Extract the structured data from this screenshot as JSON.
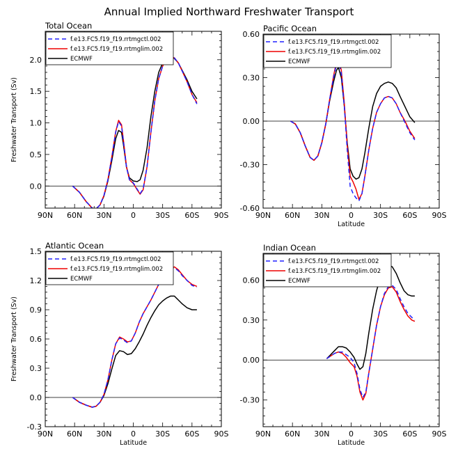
{
  "page_title": "Annual Implied Northward Freshwater Transport",
  "series_styles": [
    {
      "name": "f.e13.FC5.f19_f19.rrtmgctl.002",
      "color": "#2020ff",
      "dash": "6,4"
    },
    {
      "name": "f.e13.FC5.f19_f19.rrtmglim.002",
      "color": "#ee0000",
      "dash": ""
    },
    {
      "name": "ECMWF",
      "color": "#000000",
      "dash": ""
    }
  ],
  "chart_data": [
    {
      "type": "line",
      "title": "Total Ocean",
      "xlabel": "",
      "ylabel": "Freshwater Transport (Sv)",
      "xlim": [
        -90,
        90
      ],
      "ylim": [
        -0.35,
        2.45
      ],
      "x_reversed": true,
      "xticks": [
        -90,
        -60,
        -30,
        0,
        30,
        60,
        90
      ],
      "xtick_labels": [
        "90N",
        "60N",
        "30N",
        "0",
        "30S",
        "60S",
        "90S"
      ],
      "yticks": [
        0.0,
        0.5,
        1.0,
        1.5,
        2.0
      ],
      "ytick_labels": [
        "0.0",
        "0.5",
        "1.0",
        "1.5",
        "2.0"
      ],
      "zero_line": true,
      "legend": "top-left",
      "series": [
        {
          "name": "f.e13.FC5.f19_f19.rrtmgctl.002",
          "x": [
            -62,
            -55,
            -48,
            -42,
            -38,
            -34,
            -30,
            -26,
            -22,
            -18,
            -15,
            -12,
            -10,
            -7,
            -4,
            0,
            4,
            7,
            10,
            14,
            18,
            22,
            26,
            30,
            34,
            38,
            42,
            46,
            50,
            55,
            60,
            65
          ],
          "y": [
            0.0,
            -0.1,
            -0.25,
            -0.35,
            -0.36,
            -0.3,
            -0.15,
            0.1,
            0.45,
            0.85,
            1.02,
            0.95,
            0.7,
            0.3,
            0.1,
            0.05,
            -0.05,
            -0.12,
            -0.05,
            0.3,
            0.85,
            1.35,
            1.7,
            1.9,
            2.0,
            2.04,
            2.03,
            1.95,
            1.82,
            1.65,
            1.45,
            1.3
          ]
        },
        {
          "name": "f.e13.FC5.f19_f19.rrtmglim.002",
          "x": [
            -62,
            -55,
            -48,
            -42,
            -38,
            -34,
            -30,
            -26,
            -22,
            -18,
            -15,
            -12,
            -10,
            -7,
            -4,
            0,
            4,
            7,
            10,
            14,
            18,
            22,
            26,
            30,
            34,
            38,
            42,
            46,
            50,
            55,
            60,
            65
          ],
          "y": [
            0.0,
            -0.1,
            -0.25,
            -0.35,
            -0.36,
            -0.3,
            -0.15,
            0.1,
            0.46,
            0.86,
            1.04,
            0.97,
            0.72,
            0.31,
            0.1,
            0.04,
            -0.06,
            -0.13,
            -0.06,
            0.3,
            0.85,
            1.35,
            1.7,
            1.9,
            2.0,
            2.05,
            2.03,
            1.95,
            1.82,
            1.65,
            1.45,
            1.32
          ]
        },
        {
          "name": "ECMWF",
          "x": [
            -62,
            -55,
            -48,
            -42,
            -38,
            -34,
            -30,
            -26,
            -22,
            -18,
            -15,
            -12,
            -10,
            -7,
            -4,
            0,
            4,
            7,
            10,
            14,
            18,
            22,
            26,
            30,
            34,
            38,
            42,
            46,
            50,
            55,
            60,
            65
          ],
          "y": [
            0.0,
            -0.1,
            -0.25,
            -0.35,
            -0.36,
            -0.3,
            -0.16,
            0.08,
            0.4,
            0.75,
            0.88,
            0.85,
            0.65,
            0.3,
            0.13,
            0.08,
            0.07,
            0.1,
            0.25,
            0.6,
            1.1,
            1.5,
            1.8,
            1.95,
            2.03,
            2.05,
            2.02,
            1.95,
            1.83,
            1.68,
            1.5,
            1.38
          ]
        }
      ]
    },
    {
      "type": "line",
      "title": "Pacific Ocean",
      "xlabel": "Latitude",
      "ylabel": "",
      "xlim": [
        -90,
        90
      ],
      "ylim": [
        -0.6,
        0.6
      ],
      "x_reversed": true,
      "xticks": [
        -90,
        -60,
        -30,
        0,
        30,
        60,
        90
      ],
      "xtick_labels": [
        "90N",
        "60N",
        "30N",
        "0",
        "30S",
        "60S",
        "90S"
      ],
      "yticks": [
        -0.6,
        -0.3,
        0.0,
        0.3,
        0.6
      ],
      "ytick_labels": [
        "-0.60",
        "-0.30",
        "0.00",
        "0.30",
        "0.60"
      ],
      "zero_line": true,
      "legend": "top-left",
      "series": [
        {
          "name": "f.e13.FC5.f19_f19.rrtmgctl.002",
          "x": [
            -62,
            -57,
            -52,
            -47,
            -42,
            -38,
            -34,
            -30,
            -26,
            -22,
            -18,
            -15,
            -13,
            -10,
            -7,
            -4,
            -1,
            2,
            5,
            8,
            11,
            14,
            18,
            22,
            26,
            30,
            34,
            38,
            42,
            46,
            50,
            55,
            60,
            65
          ],
          "y": [
            0.0,
            -0.02,
            -0.08,
            -0.17,
            -0.25,
            -0.27,
            -0.24,
            -0.15,
            -0.02,
            0.15,
            0.3,
            0.39,
            0.41,
            0.33,
            0.1,
            -0.2,
            -0.45,
            -0.5,
            -0.53,
            -0.55,
            -0.5,
            -0.38,
            -0.2,
            -0.05,
            0.06,
            0.12,
            0.16,
            0.17,
            0.16,
            0.12,
            0.06,
            -0.01,
            -0.08,
            -0.13
          ]
        },
        {
          "name": "f.e13.FC5.f19_f19.rrtmglim.002",
          "x": [
            -62,
            -57,
            -52,
            -47,
            -42,
            -38,
            -34,
            -30,
            -26,
            -22,
            -18,
            -15,
            -13,
            -10,
            -7,
            -4,
            -1,
            2,
            5,
            8,
            11,
            14,
            18,
            22,
            26,
            30,
            34,
            38,
            42,
            46,
            50,
            55,
            60,
            65
          ],
          "y": [
            0.0,
            -0.02,
            -0.08,
            -0.17,
            -0.25,
            -0.27,
            -0.24,
            -0.15,
            -0.02,
            0.15,
            0.31,
            0.41,
            0.43,
            0.35,
            0.12,
            -0.17,
            -0.38,
            -0.42,
            -0.47,
            -0.54,
            -0.5,
            -0.38,
            -0.2,
            -0.05,
            0.06,
            0.12,
            0.16,
            0.17,
            0.16,
            0.12,
            0.06,
            0.0,
            -0.07,
            -0.12
          ]
        },
        {
          "name": "ECMWF",
          "x": [
            -62,
            -57,
            -52,
            -47,
            -42,
            -38,
            -34,
            -30,
            -26,
            -22,
            -18,
            -15,
            -13,
            -10,
            -7,
            -4,
            -1,
            2,
            5,
            8,
            11,
            14,
            18,
            22,
            26,
            30,
            34,
            38,
            42,
            46,
            50,
            55,
            60,
            65
          ],
          "y": [
            0.0,
            -0.02,
            -0.08,
            -0.17,
            -0.25,
            -0.27,
            -0.24,
            -0.15,
            -0.02,
            0.14,
            0.27,
            0.35,
            0.37,
            0.3,
            0.1,
            -0.15,
            -0.33,
            -0.38,
            -0.4,
            -0.39,
            -0.33,
            -0.22,
            -0.05,
            0.1,
            0.19,
            0.24,
            0.26,
            0.27,
            0.26,
            0.23,
            0.17,
            0.1,
            0.03,
            -0.01
          ]
        }
      ]
    },
    {
      "type": "line",
      "title": "Atlantic Ocean",
      "xlabel": "Latitude",
      "ylabel": "Freshwater Transport (Sv)",
      "xlim": [
        -90,
        90
      ],
      "ylim": [
        -0.3,
        1.5
      ],
      "x_reversed": true,
      "xticks": [
        -90,
        -60,
        -30,
        0,
        30,
        60,
        90
      ],
      "xtick_labels": [
        "90N",
        "60N",
        "30N",
        "0",
        "30S",
        "60S",
        "90S"
      ],
      "yticks": [
        -0.3,
        0.0,
        0.3,
        0.6,
        0.9,
        1.2,
        1.5
      ],
      "ytick_labels": [
        "-0.3",
        "0.0",
        "0.3",
        "0.6",
        "0.9",
        "1.2",
        "1.5"
      ],
      "zero_line": true,
      "legend": "top-left",
      "series": [
        {
          "name": "f.e13.FC5.f19_f19.rrtmgctl.002",
          "x": [
            -62,
            -55,
            -48,
            -42,
            -38,
            -34,
            -30,
            -26,
            -22,
            -18,
            -14,
            -10,
            -6,
            -2,
            2,
            6,
            10,
            14,
            18,
            22,
            26,
            30,
            34,
            38,
            42,
            46,
            50,
            55,
            60,
            65
          ],
          "y": [
            0.0,
            -0.05,
            -0.08,
            -0.1,
            -0.09,
            -0.05,
            0.03,
            0.18,
            0.38,
            0.55,
            0.61,
            0.59,
            0.56,
            0.58,
            0.66,
            0.77,
            0.86,
            0.93,
            1.0,
            1.08,
            1.16,
            1.23,
            1.29,
            1.32,
            1.33,
            1.3,
            1.25,
            1.2,
            1.15,
            1.13
          ]
        },
        {
          "name": "f.e13.FC5.f19_f19.rrtmglim.002",
          "x": [
            -62,
            -55,
            -48,
            -42,
            -38,
            -34,
            -30,
            -26,
            -22,
            -18,
            -14,
            -10,
            -6,
            -2,
            2,
            6,
            10,
            14,
            18,
            22,
            26,
            30,
            34,
            38,
            42,
            46,
            50,
            55,
            60,
            65
          ],
          "y": [
            0.0,
            -0.05,
            -0.08,
            -0.1,
            -0.09,
            -0.05,
            0.03,
            0.18,
            0.38,
            0.55,
            0.62,
            0.6,
            0.57,
            0.58,
            0.66,
            0.77,
            0.86,
            0.93,
            1.0,
            1.08,
            1.16,
            1.23,
            1.29,
            1.32,
            1.34,
            1.31,
            1.26,
            1.2,
            1.16,
            1.14
          ]
        },
        {
          "name": "ECMWF",
          "x": [
            -62,
            -55,
            -48,
            -42,
            -38,
            -34,
            -30,
            -26,
            -22,
            -18,
            -14,
            -10,
            -6,
            -2,
            2,
            6,
            10,
            14,
            18,
            22,
            26,
            30,
            34,
            38,
            42,
            46,
            50,
            55,
            60,
            65
          ],
          "y": [
            0.0,
            -0.05,
            -0.08,
            -0.1,
            -0.09,
            -0.05,
            0.02,
            0.14,
            0.29,
            0.43,
            0.48,
            0.47,
            0.44,
            0.45,
            0.5,
            0.57,
            0.65,
            0.74,
            0.82,
            0.89,
            0.95,
            0.99,
            1.02,
            1.04,
            1.04,
            1.0,
            0.96,
            0.92,
            0.9,
            0.9
          ]
        }
      ]
    },
    {
      "type": "line",
      "title": "Indian Ocean",
      "xlabel": "Latitude",
      "ylabel": "",
      "xlim": [
        -90,
        90
      ],
      "ylim": [
        -0.5,
        0.8
      ],
      "x_reversed": true,
      "xticks": [
        -90,
        -60,
        -30,
        0,
        30,
        60,
        90
      ],
      "xtick_labels": [
        "90N",
        "60N",
        "30N",
        "0",
        "30S",
        "60S",
        "90S"
      ],
      "yticks": [
        -0.3,
        0.0,
        0.3,
        0.6
      ],
      "ytick_labels": [
        "-0.30",
        "0.00",
        "0.30",
        "0.60"
      ],
      "zero_line": true,
      "legend": "top-left",
      "series": [
        {
          "name": "f.e13.FC5.f19_f19.rrtmgctl.002",
          "x": [
            -25,
            -21,
            -17,
            -13,
            -9,
            -5,
            -1,
            3,
            6,
            9,
            12,
            15,
            18,
            22,
            26,
            30,
            34,
            38,
            42,
            46,
            50,
            54,
            58,
            62,
            65
          ],
          "y": [
            0.01,
            0.03,
            0.05,
            0.06,
            0.06,
            0.04,
            0.02,
            -0.02,
            -0.1,
            -0.22,
            -0.28,
            -0.24,
            -0.1,
            0.08,
            0.26,
            0.4,
            0.5,
            0.55,
            0.56,
            0.53,
            0.46,
            0.4,
            0.35,
            0.32,
            0.3
          ]
        },
        {
          "name": "f.e13.FC5.f19_f19.rrtmglim.002",
          "x": [
            -25,
            -21,
            -17,
            -13,
            -9,
            -5,
            -1,
            3,
            6,
            9,
            12,
            15,
            18,
            22,
            26,
            30,
            34,
            38,
            42,
            46,
            50,
            54,
            58,
            62,
            65
          ],
          "y": [
            0.01,
            0.03,
            0.05,
            0.06,
            0.05,
            0.02,
            -0.02,
            -0.05,
            -0.12,
            -0.24,
            -0.3,
            -0.25,
            -0.1,
            0.08,
            0.26,
            0.4,
            0.49,
            0.54,
            0.55,
            0.51,
            0.44,
            0.38,
            0.33,
            0.3,
            0.29
          ]
        },
        {
          "name": "ECMWF",
          "x": [
            -25,
            -21,
            -17,
            -13,
            -9,
            -5,
            -1,
            3,
            6,
            9,
            12,
            15,
            18,
            22,
            26,
            30,
            34,
            38,
            42,
            46,
            50,
            54,
            58,
            62,
            65
          ],
          "y": [
            0.01,
            0.04,
            0.07,
            0.1,
            0.1,
            0.09,
            0.06,
            0.02,
            -0.03,
            -0.07,
            -0.05,
            0.05,
            0.2,
            0.38,
            0.52,
            0.62,
            0.68,
            0.71,
            0.7,
            0.65,
            0.58,
            0.52,
            0.49,
            0.48,
            0.48
          ]
        }
      ]
    }
  ]
}
